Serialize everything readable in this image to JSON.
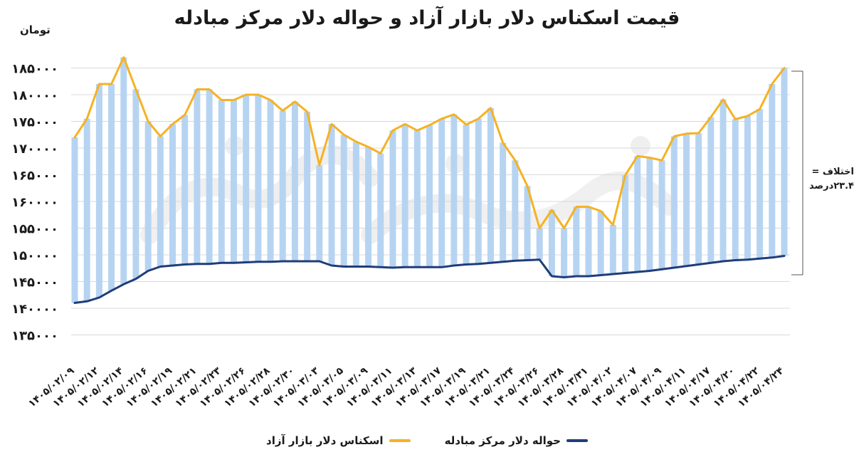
{
  "chart_data": {
    "type": "line",
    "title": "قیمت اسکناس دلار بازار آزاد و حواله دلار مرکز مبادله",
    "ylabel": "تومان",
    "ylim": [
      130000,
      190000
    ],
    "yticks": [
      135000,
      140000,
      145000,
      150000,
      155000,
      160000,
      165000,
      170000,
      175000,
      180000,
      185000
    ],
    "ytick_labels": [
      "۱۳۵۰۰۰",
      "۱۴۰۰۰۰",
      "۱۴۵۰۰۰",
      "۱۵۰۰۰۰",
      "۱۵۵۰۰۰",
      "۱۶۰۰۰۰",
      "۱۶۵۰۰۰",
      "۱۷۰۰۰۰",
      "۱۷۵۰۰۰",
      "۱۸۰۰۰۰",
      "۱۸۵۰۰۰"
    ],
    "xtick_labels": [
      "۱۴۰۵/۰۲/۰۹",
      "۱۴۰۵/۰۲/۱۲",
      "۱۴۰۵/۰۲/۱۴",
      "۱۴۰۵/۰۲/۱۶",
      "۱۴۰۵/۰۲/۱۹",
      "۱۴۰۵/۰۲/۲۱",
      "۱۴۰۵/۰۲/۲۳",
      "۱۴۰۵/۰۲/۲۶",
      "۱۴۰۵/۰۲/۲۸",
      "۱۴۰۵/۰۲/۳۰",
      "۱۴۰۵/۰۳/۰۳",
      "۱۴۰۵/۰۳/۰۵",
      "۱۴۰۵/۰۳/۰۹",
      "۱۴۰۵/۰۳/۱۱",
      "۱۴۰۵/۰۳/۱۳",
      "۱۴۰۵/۰۳/۱۷",
      "۱۴۰۵/۰۳/۱۹",
      "۱۴۰۵/۰۳/۲۱",
      "۱۴۰۵/۰۳/۲۴",
      "۱۴۰۵/۰۳/۲۶",
      "۱۴۰۵/۰۳/۲۸",
      "۱۴۰۵/۰۳/۳۱",
      "۱۴۰۵/۰۴/۰۲",
      "۱۴۰۵/۰۴/۰۷",
      "۱۴۰۵/۰۴/۰۹",
      "۱۴۰۵/۰۴/۱۱",
      "۱۴۰۵/۰۴/۱۷",
      "۱۴۰۵/۰۴/۲۰",
      "۱۴۰۵/۰۴/۲۲",
      "۱۴۰۵/۰۴/۲۴"
    ],
    "series": [
      {
        "name": "اسکناس دلار بازار آزاد",
        "color": "#f5b223",
        "values": [
          172000,
          175500,
          182000,
          182000,
          187000,
          181000,
          175000,
          172200,
          174500,
          176200,
          181000,
          181000,
          179000,
          179000,
          180000,
          180000,
          179000,
          177000,
          178700,
          176800,
          166800,
          174500,
          172500,
          171200,
          170200,
          169000,
          173300,
          174500,
          173300,
          174300,
          175500,
          176300,
          174400,
          175500,
          177500,
          171000,
          167700,
          162900,
          155000,
          158400,
          155000,
          159000,
          159000,
          158200,
          155600,
          164900,
          168500,
          168200,
          167700,
          172200,
          172700,
          172800,
          175800,
          179100,
          175400,
          176000,
          177300,
          182000,
          185000
        ]
      },
      {
        "name": "حواله دلار مرکز مبادله",
        "color": "#1f3d7a",
        "values": [
          141000,
          141300,
          142000,
          143300,
          144500,
          145500,
          147000,
          147800,
          148000,
          148200,
          148300,
          148300,
          148500,
          148500,
          148600,
          148700,
          148700,
          148800,
          148800,
          148800,
          148800,
          148000,
          147800,
          147800,
          147800,
          147700,
          147600,
          147700,
          147700,
          147700,
          147700,
          148000,
          148200,
          148300,
          148500,
          148700,
          148900,
          149000,
          149100,
          146000,
          145800,
          146000,
          146000,
          146200,
          146400,
          146600,
          146800,
          147000,
          147300,
          147600,
          147900,
          148200,
          148500,
          148800,
          149000,
          149100,
          149300,
          149500,
          149800
        ]
      }
    ],
    "grid": true,
    "legend_position": "bottom"
  },
  "annotation": {
    "line1": "اختلاف =",
    "line2": "۲۳.۴درصد"
  }
}
